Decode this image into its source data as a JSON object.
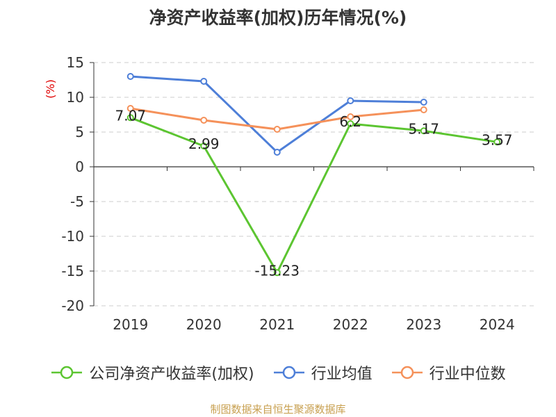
{
  "chart_data": {
    "type": "line",
    "title": "净资产收益率(加权)历年情况(%)",
    "ylabel": "(%)",
    "ylim": [
      -20,
      15
    ],
    "yticks": [
      15,
      10,
      5,
      0,
      -5,
      -10,
      -15,
      -20
    ],
    "categories": [
      "2019",
      "2020",
      "2021",
      "2022",
      "2023",
      "2024"
    ],
    "grid": true,
    "legend_position": "bottom",
    "series": [
      {
        "name": "公司净资产收益率(加权)",
        "color": "#5cc531",
        "values": [
          7.07,
          2.99,
          -15.23,
          6.2,
          5.17,
          3.57
        ],
        "labels": true
      },
      {
        "name": "行业均值",
        "color": "#4e7fd8",
        "values": [
          13.0,
          12.3,
          2.1,
          9.5,
          9.3,
          null
        ],
        "labels": false
      },
      {
        "name": "行业中位数",
        "color": "#f5915a",
        "values": [
          8.4,
          6.7,
          5.4,
          7.2,
          8.2,
          null
        ],
        "labels": false
      }
    ]
  },
  "source": "制图数据来自恒生聚源数据库"
}
